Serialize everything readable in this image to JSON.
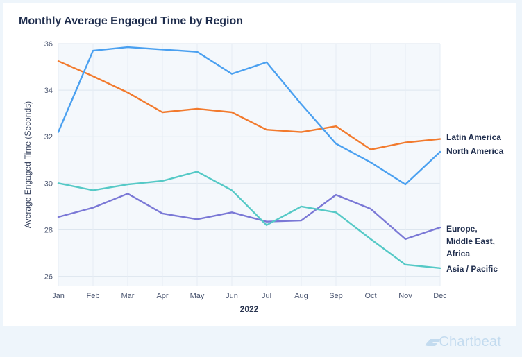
{
  "chart_data": {
    "type": "line",
    "title": "Monthly Average Engaged Time by Region",
    "xlabel": "2022",
    "ylabel": "Average Engaged Time (Seconds)",
    "ylim": [
      25.6,
      36
    ],
    "yticks": [
      26,
      28,
      30,
      32,
      34,
      36
    ],
    "categories": [
      "Jan",
      "Feb",
      "Mar",
      "Apr",
      "May",
      "Jun",
      "Jul",
      "Aug",
      "Sep",
      "Oct",
      "Nov",
      "Dec"
    ],
    "grid": true,
    "series": [
      {
        "name": "Latin America",
        "color": "#f27a2d",
        "values": [
          35.25,
          34.6,
          33.9,
          33.05,
          33.2,
          33.05,
          32.3,
          32.2,
          32.45,
          31.45,
          31.75,
          31.9
        ]
      },
      {
        "name": "North America",
        "color": "#4aa0f0",
        "values": [
          32.2,
          35.7,
          35.85,
          35.75,
          35.65,
          34.7,
          35.2,
          33.4,
          31.7,
          30.9,
          29.95,
          31.35
        ]
      },
      {
        "name": "Europe, Middle East, Africa",
        "label_lines": [
          "Europe,",
          "Middle East,",
          "Africa"
        ],
        "color": "#7a78d6",
        "values": [
          28.55,
          28.95,
          29.55,
          28.7,
          28.45,
          28.75,
          28.35,
          28.4,
          29.5,
          28.9,
          27.6,
          28.1
        ]
      },
      {
        "name": "Asia / Pacific",
        "color": "#55c9c6",
        "values": [
          30.0,
          29.7,
          29.95,
          30.1,
          30.5,
          29.7,
          28.2,
          29.0,
          28.75,
          27.6,
          26.5,
          26.35
        ]
      }
    ]
  },
  "brand": {
    "name": "Chartbeat"
  }
}
